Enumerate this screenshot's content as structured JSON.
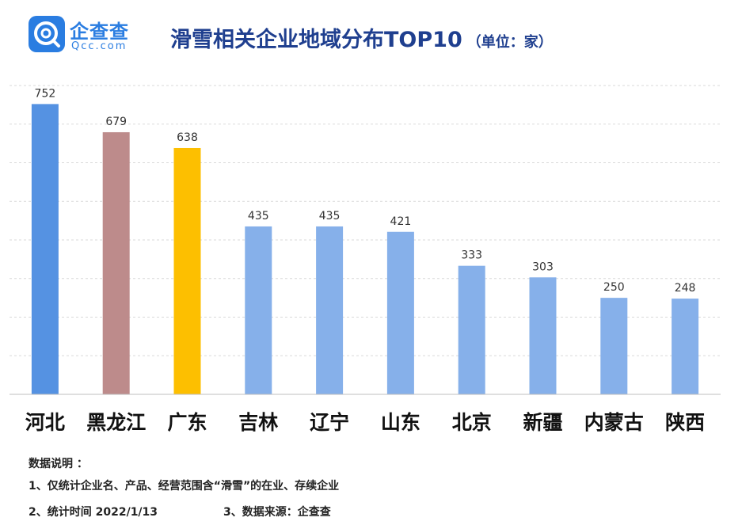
{
  "logo": {
    "name": "企查查",
    "domain": "Qcc.com"
  },
  "header": {
    "title": "滑雪相关企业地域分布TOP10",
    "unit": "（单位：家）"
  },
  "colors": {
    "default_bar": "#86b0ea",
    "bars": [
      "#5592e2",
      "#bd8b8b",
      "#fdbf00",
      "#86b0ea",
      "#86b0ea",
      "#86b0ea",
      "#86b0ea",
      "#86b0ea",
      "#86b0ea",
      "#86b0ea"
    ],
    "title": "#1f3f8f",
    "logo": "#2a7de1",
    "grid": "#d9d9d9"
  },
  "chart_data": {
    "type": "bar",
    "title": "滑雪相关企业地域分布TOP10",
    "ylabel": "",
    "xlabel": "",
    "categories": [
      "河北",
      "黑龙江",
      "广东",
      "吉林",
      "辽宁",
      "山东",
      "北京",
      "新疆",
      "内蒙古",
      "陕西"
    ],
    "values": [
      752,
      679,
      638,
      435,
      435,
      421,
      333,
      303,
      250,
      248
    ],
    "ylim": [
      0,
      800
    ],
    "grid": true,
    "data_labels": true,
    "legend": "none"
  },
  "notes": {
    "heading": "数据说明 ：",
    "item1": "1、仅统计企业名、产品、经营范围含“滑雪”的在业、存续企业",
    "item2": "2、统计时间  2022/1/13",
    "item3": "3、数据来源：企查查"
  }
}
